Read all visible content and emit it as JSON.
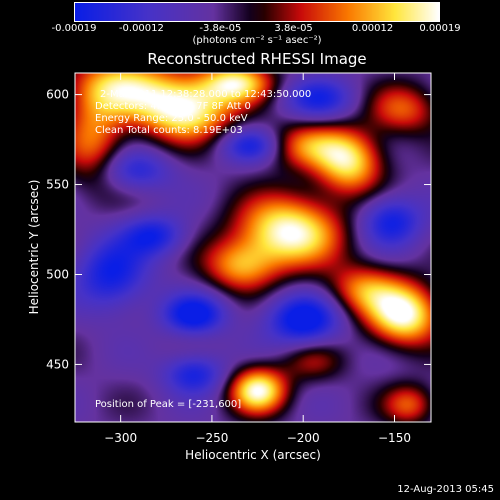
{
  "chart_data": {
    "type": "heatmap",
    "title": "Reconstructed RHESSI Image",
    "xlabel": "Heliocentric X (arcsec)",
    "ylabel": "Heliocentric Y (arcsec)",
    "xlim": [
      -325,
      -130
    ],
    "ylim": [
      418,
      612
    ],
    "x_ticks": [
      -300,
      -250,
      -200,
      -150
    ],
    "y_ticks": [
      450,
      500,
      550,
      600
    ],
    "colorbar": {
      "range": [
        -0.00019,
        0.00019
      ],
      "tick_labels": [
        "-0.00019",
        "-0.00012",
        "-3.8e-05",
        "3.8e-05",
        "0.00012",
        "0.00019"
      ],
      "tick_values": [
        -0.00019,
        -0.00012,
        -3.8e-05,
        3.8e-05,
        0.00012,
        0.00019
      ],
      "units": "(photons cm⁻² s⁻¹ asec⁻²)"
    },
    "annotations": {
      "time": "2-Mar-2011 12:38:28.000 to 12:43:50.000",
      "detectors": "Detectors: 4F 5F 6F 7F 8F Att 0",
      "energy": "Energy Range: 25.0 - 50.0 keV",
      "clean": "Clean    Total counts: 8.19E+03",
      "peak": "Position of Peak = [-231,600]"
    },
    "blobs": [
      {
        "x": -265,
        "y": 592,
        "amp": 1.0,
        "sx": 18,
        "sy": 12
      },
      {
        "x": -300,
        "y": 605,
        "amp": 0.75,
        "sx": 20,
        "sy": 12
      },
      {
        "x": -237,
        "y": 607,
        "amp": 0.8,
        "sx": 14,
        "sy": 8
      },
      {
        "x": -315,
        "y": 575,
        "amp": 0.55,
        "sx": 12,
        "sy": 18
      },
      {
        "x": -175,
        "y": 562,
        "amp": 0.8,
        "sx": 13,
        "sy": 12
      },
      {
        "x": -200,
        "y": 572,
        "amp": 0.55,
        "sx": 18,
        "sy": 9
      },
      {
        "x": -145,
        "y": 592,
        "amp": 0.5,
        "sx": 14,
        "sy": 10
      },
      {
        "x": -208,
        "y": 524,
        "amp": 1.0,
        "sx": 20,
        "sy": 14
      },
      {
        "x": -235,
        "y": 505,
        "amp": 0.6,
        "sx": 14,
        "sy": 10
      },
      {
        "x": -145,
        "y": 478,
        "amp": 1.0,
        "sx": 14,
        "sy": 12
      },
      {
        "x": -168,
        "y": 492,
        "amp": 0.55,
        "sx": 14,
        "sy": 10
      },
      {
        "x": -225,
        "y": 436,
        "amp": 0.95,
        "sx": 11,
        "sy": 9
      },
      {
        "x": -142,
        "y": 428,
        "amp": 0.5,
        "sx": 10,
        "sy": 8
      },
      {
        "x": -195,
        "y": 452,
        "amp": 0.3,
        "sx": 12,
        "sy": 8
      },
      {
        "x": -282,
        "y": 522,
        "amp": -0.55,
        "sx": 12,
        "sy": 8
      },
      {
        "x": -305,
        "y": 500,
        "amp": -0.6,
        "sx": 14,
        "sy": 14
      },
      {
        "x": -260,
        "y": 478,
        "amp": -0.7,
        "sx": 12,
        "sy": 8
      },
      {
        "x": -200,
        "y": 475,
        "amp": -0.75,
        "sx": 14,
        "sy": 10
      },
      {
        "x": -228,
        "y": 572,
        "amp": -0.6,
        "sx": 12,
        "sy": 7
      },
      {
        "x": -192,
        "y": 598,
        "amp": -0.5,
        "sx": 14,
        "sy": 8
      },
      {
        "x": -152,
        "y": 530,
        "amp": -0.6,
        "sx": 12,
        "sy": 10
      },
      {
        "x": -260,
        "y": 445,
        "amp": -0.55,
        "sx": 12,
        "sy": 8
      },
      {
        "x": -292,
        "y": 558,
        "amp": -0.45,
        "sx": 14,
        "sy": 8
      }
    ]
  },
  "footer": {
    "date": "12-Aug-2013 05:45"
  }
}
